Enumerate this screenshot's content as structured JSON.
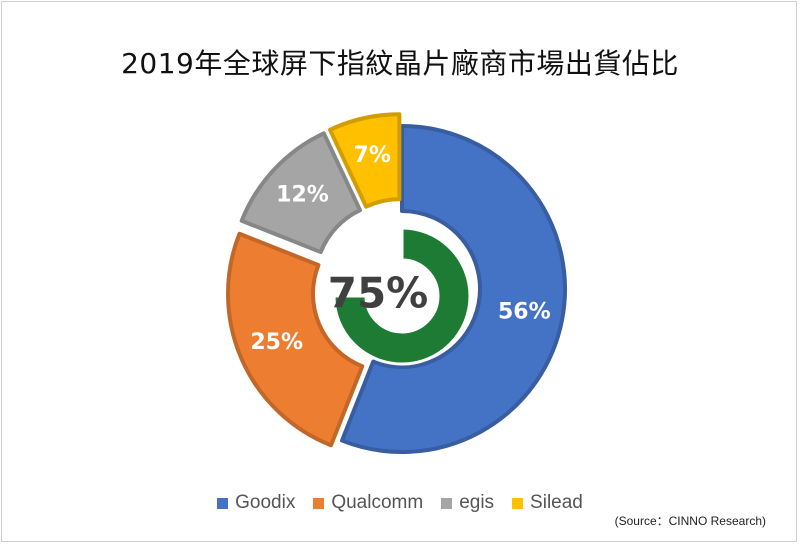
{
  "chart_data": {
    "type": "pie",
    "title": "2019年全球屏下指紋晶片廠商市場出貨佔比",
    "labels": [
      "Goodix",
      "Qualcomm",
      "egis",
      "Silead"
    ],
    "values": [
      56,
      25,
      12,
      7
    ],
    "value_labels": [
      "56%",
      "25%",
      "12%",
      "7%"
    ],
    "colors": [
      "#4472C4",
      "#ED7D31",
      "#A5A5A5",
      "#FFC000"
    ],
    "donut": true,
    "legend_position": "bottom",
    "inner_ring": {
      "value": 75,
      "label": "75%",
      "color": "#1E7B34"
    }
  },
  "source": "(Source：CINNO Research)"
}
